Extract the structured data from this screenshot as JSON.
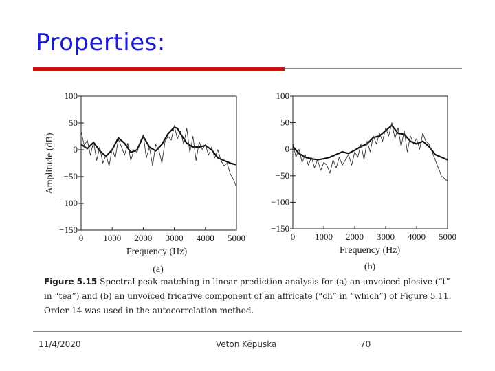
{
  "slide": {
    "title": "Properties:",
    "footer_date": "11/4/2020",
    "footer_author": "Veton Këpuska",
    "footer_page": "70"
  },
  "colors": {
    "title": "#1a1ad1",
    "accent_rule": "#cc1111",
    "divider": "#8a8a8a"
  },
  "figure": {
    "caption_label": "Figure 5.15",
    "caption_text": "Spectral peak matching in linear prediction analysis for (a) an unvoiced plosive (“t” in “tea”) and (b) an unvoiced fricative component of an affricate (“ch” in “which”) of Figure 5.11. Order 14 was used in the autocorrelation method."
  },
  "chart_data": [
    {
      "type": "line",
      "panel_label": "(a)",
      "xlabel": "Frequency (Hz)",
      "ylabel": "Amplitude (dB)",
      "xlim": [
        0,
        5000
      ],
      "ylim": [
        -150,
        100
      ],
      "x_ticks": [
        "0",
        "1000",
        "2000",
        "3000",
        "4000",
        "5000"
      ],
      "y_ticks": [
        "100",
        "50",
        "0",
        "−50",
        "−100",
        "−150"
      ],
      "series": [
        {
          "role": "envelope",
          "x": [
            0,
            200,
            400,
            600,
            800,
            1000,
            1200,
            1400,
            1600,
            1800,
            2000,
            2200,
            2400,
            2600,
            2800,
            3000,
            3100,
            3200,
            3400,
            3600,
            3800,
            4000,
            4200,
            4400,
            4600,
            4800,
            5000
          ],
          "y": [
            10,
            2,
            14,
            -2,
            -12,
            0,
            22,
            12,
            -5,
            0,
            25,
            5,
            -2,
            10,
            30,
            42,
            40,
            30,
            12,
            5,
            5,
            8,
            0,
            -15,
            -20,
            -25,
            -28
          ]
        },
        {
          "role": "spectrum",
          "x": [
            0,
            100,
            200,
            300,
            400,
            500,
            600,
            700,
            800,
            900,
            1000,
            1100,
            1200,
            1300,
            1400,
            1500,
            1600,
            1700,
            1800,
            1900,
            2000,
            2100,
            2200,
            2300,
            2400,
            2500,
            2600,
            2700,
            2800,
            2900,
            3000,
            3100,
            3200,
            3300,
            3400,
            3500,
            3600,
            3700,
            3800,
            3900,
            4000,
            4100,
            4200,
            4300,
            4400,
            4500,
            4600,
            4700,
            4800,
            4900,
            5000
          ],
          "y": [
            35,
            8,
            18,
            -10,
            15,
            -20,
            5,
            -25,
            -10,
            -30,
            2,
            -15,
            20,
            5,
            -10,
            12,
            -20,
            0,
            -5,
            15,
            28,
            -15,
            5,
            -30,
            10,
            0,
            -25,
            15,
            25,
            18,
            45,
            20,
            35,
            10,
            40,
            -5,
            25,
            -20,
            15,
            0,
            10,
            -10,
            5,
            -15,
            0,
            -20,
            -30,
            -25,
            -45,
            -55,
            -70
          ]
        }
      ]
    },
    {
      "type": "line",
      "panel_label": "(b)",
      "xlabel": "Frequency (Hz)",
      "ylabel": "",
      "xlim": [
        0,
        5000
      ],
      "ylim": [
        -150,
        100
      ],
      "x_ticks": [
        "0",
        "1000",
        "2000",
        "3000",
        "4000",
        "5000"
      ],
      "y_ticks": [
        "100",
        "50",
        "0",
        "−50",
        "−100",
        "−150"
      ],
      "series": [
        {
          "role": "envelope",
          "x": [
            0,
            200,
            400,
            600,
            800,
            1000,
            1200,
            1400,
            1600,
            1800,
            2000,
            2200,
            2400,
            2600,
            2800,
            3000,
            3200,
            3400,
            3600,
            3800,
            4000,
            4200,
            4400,
            4600,
            4800,
            5000
          ],
          "y": [
            5,
            -8,
            -15,
            -18,
            -20,
            -18,
            -15,
            -10,
            -5,
            -8,
            -2,
            5,
            10,
            22,
            25,
            35,
            45,
            30,
            28,
            15,
            10,
            15,
            5,
            -10,
            -15,
            -20
          ]
        },
        {
          "role": "spectrum",
          "x": [
            0,
            100,
            200,
            300,
            400,
            500,
            600,
            700,
            800,
            900,
            1000,
            1100,
            1200,
            1300,
            1400,
            1500,
            1600,
            1700,
            1800,
            1900,
            2000,
            2100,
            2200,
            2300,
            2400,
            2500,
            2600,
            2700,
            2800,
            2900,
            3000,
            3100,
            3200,
            3300,
            3400,
            3500,
            3600,
            3700,
            3800,
            3900,
            4000,
            4100,
            4200,
            4300,
            4400,
            4500,
            4600,
            4700,
            4800,
            4900,
            5000
          ],
          "y": [
            12,
            -15,
            0,
            -25,
            -10,
            -30,
            -15,
            -35,
            -20,
            -40,
            -25,
            -30,
            -45,
            -20,
            -35,
            -15,
            -30,
            -20,
            -10,
            -30,
            -5,
            -15,
            10,
            -20,
            15,
            -5,
            25,
            10,
            30,
            15,
            40,
            25,
            50,
            20,
            40,
            5,
            35,
            -5,
            25,
            10,
            20,
            0,
            30,
            15,
            10,
            -5,
            -20,
            -35,
            -50,
            -55,
            -60
          ]
        }
      ]
    }
  ]
}
